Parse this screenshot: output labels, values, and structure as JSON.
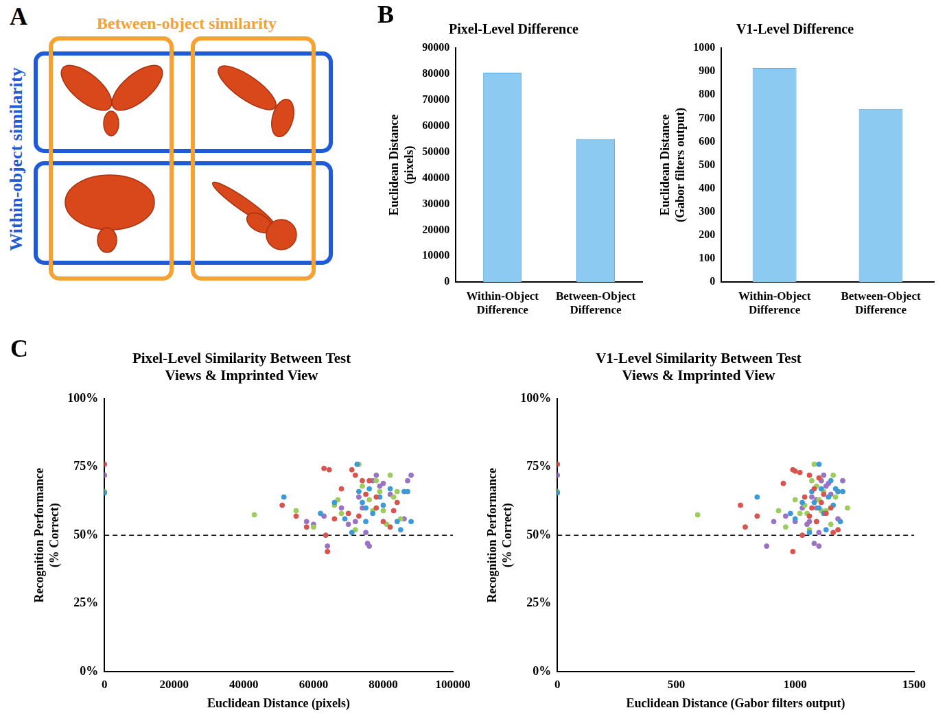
{
  "diagram": {
    "letter": "A",
    "between_label": "Between-object similarity",
    "within_label": "Within-object similarity"
  },
  "chart_data": [
    {
      "panel": "B",
      "type": "bar",
      "title": "Pixel-Level Difference",
      "categories": [
        "Within-Object Difference",
        "Between-Object Difference"
      ],
      "values": [
        80500,
        55000
      ],
      "color": "#8ccaf2",
      "y_label": "Euclidean Distance (pixels)",
      "ylim": [
        0,
        90000
      ],
      "yticks": [
        0,
        10000,
        20000,
        30000,
        40000,
        50000,
        60000,
        70000,
        80000,
        90000
      ],
      "grid": false
    },
    {
      "type": "bar",
      "title": "V1-Level Difference",
      "categories": [
        "Within-Object Difference",
        "Between-Object Difference"
      ],
      "values": [
        915,
        740
      ],
      "color": "#8ccaf2",
      "y_label": "Euclidean Distance (Gabor filters output)",
      "ylim": [
        0,
        1000
      ],
      "yticks": [
        0,
        100,
        200,
        300,
        400,
        500,
        600,
        700,
        800,
        900,
        1000
      ],
      "grid": false
    },
    {
      "panel": "C",
      "type": "scatter",
      "title": "Pixel-Level Similarity Between Test Views & Imprinted View",
      "x_label": "Euclidean Distance (pixels)",
      "y_label": "Recognition Performance (% Correct)",
      "xlim": [
        0,
        100000
      ],
      "xticks": [
        0,
        20000,
        40000,
        60000,
        80000,
        100000
      ],
      "ylim": [
        0,
        100
      ],
      "yticks": [
        {
          "value": 0,
          "label": "0%"
        },
        {
          "value": 25,
          "label": "25%"
        },
        {
          "value": 50,
          "label": "50%"
        },
        {
          "value": 75,
          "label": "75%"
        },
        {
          "value": 100,
          "label": "100%"
        }
      ],
      "grid": false,
      "reference_line": {
        "y": 50,
        "line_style": "dashed"
      },
      "series": [
        {
          "color": "#d9534f",
          "values": [
            [
              0,
              76
            ],
            [
              51000,
              61
            ],
            [
              55000,
              57
            ],
            [
              58000,
              53
            ],
            [
              63000,
              74.5
            ],
            [
              64500,
              74
            ],
            [
              63500,
              50
            ],
            [
              64000,
              44
            ],
            [
              66000,
              56
            ],
            [
              68000,
              67
            ],
            [
              70000,
              58
            ],
            [
              71000,
              74
            ],
            [
              72000,
              72
            ],
            [
              74000,
              70
            ],
            [
              75000,
              65
            ],
            [
              76000,
              70
            ],
            [
              78000,
              60
            ],
            [
              80000,
              55
            ],
            [
              82000,
              53
            ],
            [
              83000,
              59
            ],
            [
              84000,
              62
            ],
            [
              73000,
              57
            ],
            [
              78000,
              64
            ]
          ]
        },
        {
          "color": "#3b9ad9",
          "values": [
            [
              0,
              65.5
            ],
            [
              51500,
              64
            ],
            [
              62000,
              58
            ],
            [
              66000,
              62
            ],
            [
              69000,
              56
            ],
            [
              71000,
              51
            ],
            [
              72500,
              76
            ],
            [
              73000,
              66
            ],
            [
              74000,
              62
            ],
            [
              75000,
              55
            ],
            [
              76000,
              67
            ],
            [
              77000,
              58
            ],
            [
              79000,
              64
            ],
            [
              80000,
              61
            ],
            [
              82000,
              67
            ],
            [
              84000,
              55
            ],
            [
              85000,
              52
            ],
            [
              86000,
              66
            ],
            [
              87000,
              66
            ],
            [
              88000,
              55
            ],
            [
              75000,
              60
            ]
          ]
        },
        {
          "color": "#9ccc5a",
          "values": [
            [
              0,
              66
            ],
            [
              43000,
              57.5
            ],
            [
              55000,
              59
            ],
            [
              60000,
              53
            ],
            [
              66000,
              61
            ],
            [
              67000,
              63
            ],
            [
              68000,
              58
            ],
            [
              70000,
              58
            ],
            [
              72000,
              52
            ],
            [
              73000,
              76
            ],
            [
              74000,
              68
            ],
            [
              76000,
              63
            ],
            [
              77000,
              59
            ],
            [
              79000,
              66
            ],
            [
              80000,
              59
            ],
            [
              81000,
              54
            ],
            [
              82000,
              72
            ],
            [
              83000,
              64
            ],
            [
              84000,
              66
            ],
            [
              85000,
              56
            ],
            [
              78000,
              70
            ]
          ]
        },
        {
          "color": "#9a73c4",
          "values": [
            [
              0,
              72
            ],
            [
              58000,
              55
            ],
            [
              60000,
              54
            ],
            [
              63000,
              57
            ],
            [
              64000,
              46
            ],
            [
              68000,
              60
            ],
            [
              70000,
              54
            ],
            [
              72000,
              55
            ],
            [
              73000,
              64
            ],
            [
              74000,
              60
            ],
            [
              75000,
              51
            ],
            [
              75500,
              47
            ],
            [
              76000,
              46
            ],
            [
              77000,
              70
            ],
            [
              78000,
              72
            ],
            [
              79000,
              68
            ],
            [
              80000,
              69
            ],
            [
              82000,
              65
            ],
            [
              86000,
              56
            ],
            [
              88000,
              72
            ],
            [
              87000,
              70
            ]
          ]
        }
      ]
    },
    {
      "type": "scatter",
      "title": "V1-Level Similarity Between Test Views & Imprinted View",
      "x_label": "Euclidean Distance (Gabor filters output)",
      "y_label": "Recognition Performance (% Correct)",
      "xlim": [
        0,
        1500
      ],
      "xticks": [
        0,
        500,
        1000,
        1500
      ],
      "ylim": [
        0,
        100
      ],
      "yticks": [
        {
          "value": 0,
          "label": "0%"
        },
        {
          "value": 25,
          "label": "25%"
        },
        {
          "value": 50,
          "label": "50%"
        },
        {
          "value": 75,
          "label": "75%"
        },
        {
          "value": 100,
          "label": "100%"
        }
      ],
      "grid": false,
      "reference_line": {
        "y": 50,
        "line_style": "dashed"
      },
      "series": [
        {
          "color": "#d9534f",
          "values": [
            [
              0,
              76
            ],
            [
              770,
              61
            ],
            [
              790,
              53
            ],
            [
              840,
              57
            ],
            [
              950,
              69
            ],
            [
              990,
              74
            ],
            [
              1000,
              73.5
            ],
            [
              990,
              44
            ],
            [
              1020,
              73
            ],
            [
              1030,
              50
            ],
            [
              1040,
              64
            ],
            [
              1060,
              72
            ],
            [
              1070,
              60
            ],
            [
              1080,
              67
            ],
            [
              1090,
              55
            ],
            [
              1100,
              71
            ],
            [
              1110,
              62
            ],
            [
              1130,
              58
            ],
            [
              1150,
              60
            ],
            [
              1160,
              51
            ],
            [
              1180,
              52
            ],
            [
              1060,
              57
            ],
            [
              1120,
              65
            ]
          ]
        },
        {
          "color": "#3b9ad9",
          "values": [
            [
              0,
              65.5
            ],
            [
              840,
              64
            ],
            [
              980,
              58
            ],
            [
              1000,
              56
            ],
            [
              1030,
              62
            ],
            [
              1060,
              51
            ],
            [
              1070,
              66
            ],
            [
              1080,
              62
            ],
            [
              1090,
              55
            ],
            [
              1100,
              76
            ],
            [
              1110,
              67
            ],
            [
              1120,
              58
            ],
            [
              1130,
              52
            ],
            [
              1140,
              64
            ],
            [
              1150,
              70
            ],
            [
              1160,
              61
            ],
            [
              1170,
              67
            ],
            [
              1180,
              66
            ],
            [
              1190,
              55
            ],
            [
              1200,
              66
            ],
            [
              1100,
              60
            ]
          ]
        },
        {
          "color": "#9ccc5a",
          "values": [
            [
              0,
              66
            ],
            [
              590,
              57.5
            ],
            [
              930,
              59
            ],
            [
              960,
              53
            ],
            [
              1000,
              63
            ],
            [
              1020,
              58
            ],
            [
              1040,
              61
            ],
            [
              1050,
              58
            ],
            [
              1060,
              52
            ],
            [
              1080,
              76
            ],
            [
              1090,
              68
            ],
            [
              1100,
              63
            ],
            [
              1110,
              59
            ],
            [
              1120,
              66
            ],
            [
              1130,
              59
            ],
            [
              1150,
              54
            ],
            [
              1160,
              72
            ],
            [
              1170,
              64
            ],
            [
              1180,
              66
            ],
            [
              1220,
              60
            ],
            [
              1070,
              70
            ]
          ]
        },
        {
          "color": "#9a73c4",
          "values": [
            [
              0,
              72
            ],
            [
              880,
              46
            ],
            [
              910,
              55
            ],
            [
              960,
              57
            ],
            [
              1000,
              55
            ],
            [
              1030,
              60
            ],
            [
              1050,
              54
            ],
            [
              1060,
              55
            ],
            [
              1070,
              64
            ],
            [
              1080,
              47
            ],
            [
              1090,
              60
            ],
            [
              1100,
              46
            ],
            [
              1100,
              51
            ],
            [
              1110,
              70
            ],
            [
              1120,
              72
            ],
            [
              1130,
              68
            ],
            [
              1140,
              69
            ],
            [
              1150,
              65
            ],
            [
              1180,
              56
            ],
            [
              1200,
              70
            ],
            [
              1090,
              63
            ]
          ]
        }
      ]
    }
  ]
}
